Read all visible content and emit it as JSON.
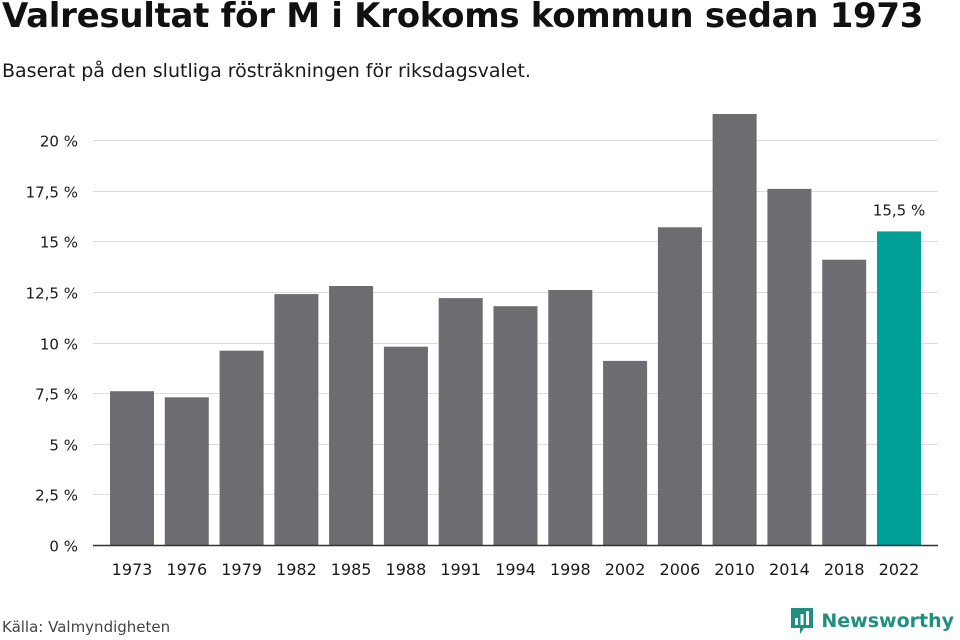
{
  "header": {
    "title": "Valresultat för M i Krokoms kommun sedan 1973",
    "subtitle": "Baserat på den slutliga rösträkningen för riksdagsvalet."
  },
  "footer": {
    "source": "Källa: Valmyndigheten",
    "brand": "Newsworthy",
    "brand_icon": "newsworthy-logo-icon"
  },
  "colors": {
    "bar": "#6d6c71",
    "highlight": "#00a096",
    "grid": "#dcdcdc",
    "axis": "#333333",
    "text": "#1a1a1a"
  },
  "chart_data": {
    "type": "bar",
    "title": "Valresultat för M i Krokoms kommun sedan 1973",
    "subtitle": "Baserat på den slutliga rösträkningen för riksdagsvalet.",
    "xlabel": "",
    "ylabel": "",
    "categories": [
      "1973",
      "1976",
      "1979",
      "1982",
      "1985",
      "1988",
      "1991",
      "1994",
      "1998",
      "2002",
      "2006",
      "2010",
      "2014",
      "2018",
      "2022"
    ],
    "values": [
      7.6,
      7.3,
      9.6,
      12.4,
      12.8,
      9.8,
      12.2,
      11.8,
      12.6,
      9.1,
      15.7,
      21.3,
      17.6,
      14.1,
      15.5
    ],
    "highlight_index": 14,
    "annotation": "15,5 %",
    "ylim": [
      0,
      21.3
    ],
    "yticks": [
      0,
      2.5,
      5,
      7.5,
      10,
      12.5,
      15,
      17.5,
      20
    ],
    "ytick_labels": [
      "0 %",
      "2,5 %",
      "5 %",
      "7,5 %",
      "10 %",
      "12,5 %",
      "15 %",
      "17,5 %",
      "20 %"
    ],
    "grid": true,
    "legend": "none"
  }
}
